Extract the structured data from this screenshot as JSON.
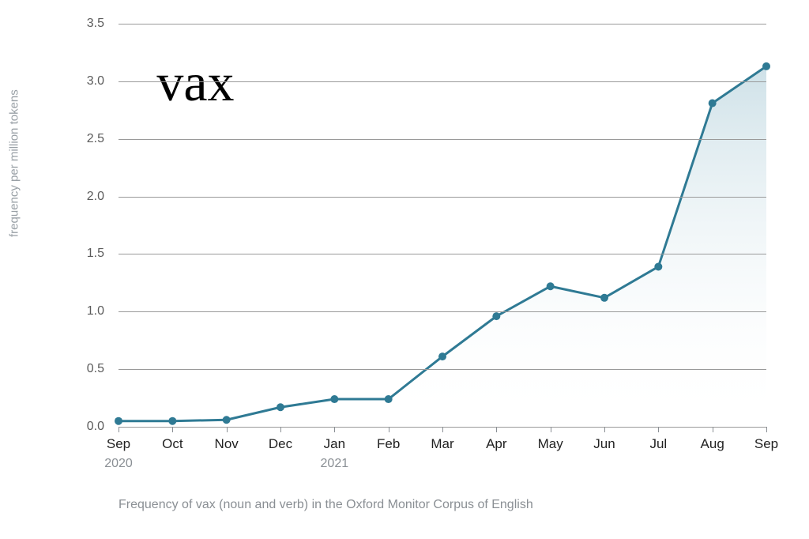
{
  "chart": {
    "type": "area-line",
    "ylabel": "frequency per million tokens",
    "caption": "Frequency of vax (noun and verb) in the Oxford Monitor Corpus of English",
    "overlay_word": "vax",
    "overlay_fontsize": 68,
    "overlay_color": "#000000",
    "ylim": [
      0.0,
      3.5
    ],
    "ytick_step": 0.5,
    "yticks": [
      "0.0",
      "0.5",
      "1.0",
      "1.5",
      "2.0",
      "2.5",
      "3.0",
      "3.5"
    ],
    "xticks": [
      "Sep",
      "Oct",
      "Nov",
      "Dec",
      "Jan",
      "Feb",
      "Mar",
      "Apr",
      "May",
      "Jun",
      "Jul",
      "Aug",
      "Sep"
    ],
    "x_year_labels": [
      {
        "index": 0,
        "label": "2020"
      },
      {
        "index": 4,
        "label": "2021"
      }
    ],
    "values": [
      0.05,
      0.05,
      0.06,
      0.17,
      0.24,
      0.24,
      0.61,
      0.96,
      1.22,
      1.12,
      1.39,
      2.81,
      3.13
    ],
    "line_color": "#2f7a94",
    "line_width": 3,
    "marker_color": "#2f7a94",
    "marker_radius": 5,
    "fill_top_color": "#c6dce4",
    "fill_bottom_color": "#ffffff",
    "fill_opacity": 0.85,
    "grid_color": "#9a9a9a",
    "axis_label_color": "#5b5b5b",
    "xtick_label_color": "#222222",
    "ylabel_color": "#99a0a6",
    "caption_color": "#8a8f94",
    "background_color": "#ffffff",
    "ylabel_fontsize": 15,
    "tick_fontsize": 16,
    "caption_fontsize": 16
  }
}
